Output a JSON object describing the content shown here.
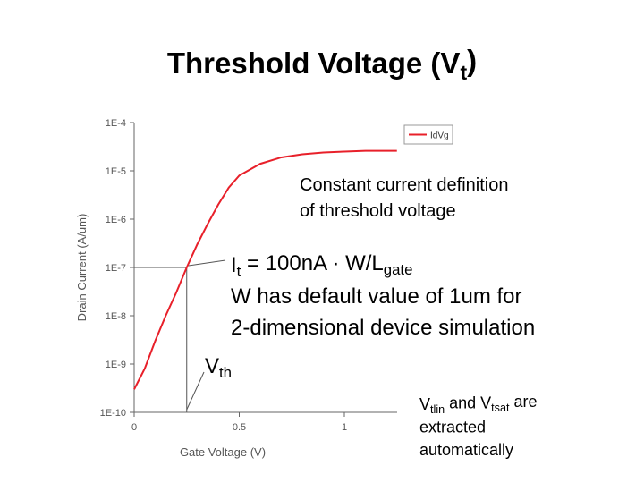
{
  "chart_data": {
    "type": "line",
    "title": [
      {
        "text": "Threshold Voltage (V"
      },
      {
        "sub": "t"
      },
      {
        "text": ")"
      }
    ],
    "xlabel": "Gate Voltage (V)",
    "ylabel": "Drain Current (A/um)",
    "xlim": [
      0,
      1.25
    ],
    "ylim": [
      1e-10,
      0.0001
    ],
    "log_y": true,
    "xticks": [
      0,
      0.5,
      1
    ],
    "yticks": [
      {
        "value": 1e-10,
        "label": "1E-10"
      },
      {
        "value": 1e-09,
        "label": "1E-9"
      },
      {
        "value": 1e-08,
        "label": "1E-8"
      },
      {
        "value": 1e-07,
        "label": "1E-7"
      },
      {
        "value": 1e-06,
        "label": "1E-6"
      },
      {
        "value": 1e-05,
        "label": "1E-5"
      },
      {
        "value": 0.0001,
        "label": "1E-4"
      }
    ],
    "legend": "upper right",
    "series": [
      {
        "name": "IdVg",
        "color": "#e8202a",
        "x": [
          0,
          0.05,
          0.1,
          0.15,
          0.2,
          0.25,
          0.3,
          0.35,
          0.4,
          0.45,
          0.5,
          0.6,
          0.7,
          0.8,
          0.9,
          1.0,
          1.1,
          1.2,
          1.25
        ],
        "values": [
          3e-10,
          8e-10,
          3e-09,
          1e-08,
          3e-08,
          1e-07,
          3e-07,
          8e-07,
          2e-06,
          4.5e-06,
          8e-06,
          1.4e-05,
          1.9e-05,
          2.2e-05,
          2.4e-05,
          2.5e-05,
          2.6e-05,
          2.6e-05,
          2.6e-05
        ]
      }
    ],
    "threshold_point": {
      "x": 0.25,
      "y": 1e-07
    },
    "annotations": [
      {
        "lines": [
          [
            {
              "text": "Constant  current  definition"
            }
          ],
          [
            {
              "text": "of threshold voltage"
            }
          ]
        ]
      },
      {
        "lines": [
          [
            {
              "text": "I"
            },
            {
              "sub": "t"
            },
            {
              "text": " = 100nA · W/L"
            },
            {
              "sub": "gate"
            }
          ],
          [
            {
              "text": "W has default value of 1um for"
            }
          ],
          [
            {
              "text": "2-dimensional device simulation"
            }
          ]
        ]
      },
      {
        "lines": [
          [
            {
              "text": "V"
            },
            {
              "sub": "th"
            }
          ]
        ]
      },
      {
        "lines": [
          [
            {
              "text": "V"
            },
            {
              "sub": "tlin"
            },
            {
              "text": "  and  V"
            },
            {
              "sub": "tsat"
            },
            {
              "text": "  are"
            }
          ],
          [
            {
              "text": "extracted"
            }
          ],
          [
            {
              "text": "automatically"
            }
          ]
        ]
      }
    ]
  }
}
